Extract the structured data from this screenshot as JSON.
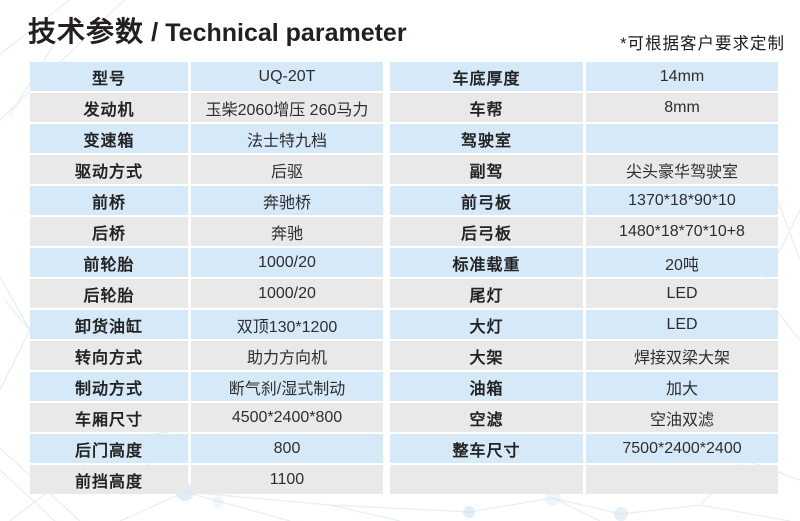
{
  "header": {
    "title_cn": "技术参数",
    "title_sep": "/",
    "title_en": "Technical parameter",
    "note": "*可根据客户要求定制"
  },
  "colors": {
    "row_blue": "#d5e9f8",
    "row_gray": "#e9e9e9",
    "title_text": "#231f20",
    "cell_text": "#2e2e2e"
  },
  "tables": {
    "left": {
      "rows": [
        {
          "label": "型号",
          "value": "UQ-20T"
        },
        {
          "label": "发动机",
          "value": "玉柴2060增压 260马力"
        },
        {
          "label": "变速箱",
          "value": "法士特九档"
        },
        {
          "label": "驱动方式",
          "value": "后驱"
        },
        {
          "label": "前桥",
          "value": "奔驰桥"
        },
        {
          "label": "后桥",
          "value": "奔驰"
        },
        {
          "label": "前轮胎",
          "value": "1000/20"
        },
        {
          "label": "后轮胎",
          "value": "1000/20"
        },
        {
          "label": "卸货油缸",
          "value": "双顶130*1200"
        },
        {
          "label": "转向方式",
          "value": "助力方向机"
        },
        {
          "label": "制动方式",
          "value": "断气刹/湿式制动"
        },
        {
          "label": "车厢尺寸",
          "value": "4500*2400*800"
        },
        {
          "label": "后门高度",
          "value": "800"
        },
        {
          "label": "前挡高度",
          "value": "1100"
        }
      ]
    },
    "right": {
      "rows": [
        {
          "label": "车底厚度",
          "value": "14mm"
        },
        {
          "label": "车帮",
          "value": "8mm"
        },
        {
          "label": "驾驶室",
          "value": ""
        },
        {
          "label": "副驾",
          "value": "尖头豪华驾驶室"
        },
        {
          "label": "前弓板",
          "value": "1370*18*90*10"
        },
        {
          "label": "后弓板",
          "value": "1480*18*70*10+8"
        },
        {
          "label": "标准载重",
          "value": "20吨"
        },
        {
          "label": "尾灯",
          "value": "LED"
        },
        {
          "label": "大灯",
          "value": "LED"
        },
        {
          "label": "大架",
          "value": "焊接双梁大架"
        },
        {
          "label": "油箱",
          "value": "加大"
        },
        {
          "label": "空滤",
          "value": "空油双滤"
        },
        {
          "label": "整车尺寸",
          "value": "7500*2400*2400"
        },
        {
          "label": "",
          "value": ""
        }
      ]
    }
  }
}
